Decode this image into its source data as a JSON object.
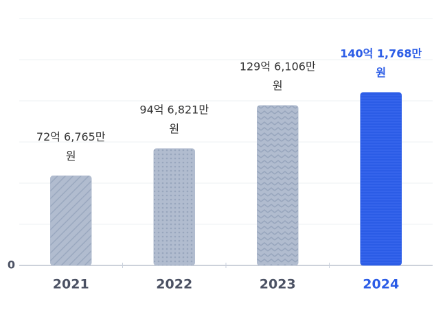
{
  "chart_data": {
    "type": "bar",
    "categories": [
      "2021",
      "2022",
      "2023",
      "2024"
    ],
    "values": [
      7267650000,
      9468210000,
      12961060000,
      14017680000
    ],
    "value_labels": [
      "72억 6,765만 원",
      "94억 6,821만 원",
      "129억 6,106만 원",
      "140억 1,768만 원"
    ],
    "colors": [
      "#b1bccf",
      "#b1bccf",
      "#b1bccf",
      "#2b5ce6"
    ],
    "label_colors": [
      "#333333",
      "#333333",
      "#333333",
      "#2b5ce6"
    ],
    "category_colors": [
      "#4b5163",
      "#4b5163",
      "#4b5163",
      "#2b5ce6"
    ],
    "ylim": [
      0,
      20000000000
    ],
    "yticks": [
      0,
      {
        "value": 3333333333,
        "label": null
      },
      {
        "value": 6666666667,
        "label": null
      },
      {
        "value": 10000000000,
        "label": null
      },
      {
        "value": 13333333333,
        "label": null
      },
      {
        "value": 16666666667,
        "label": null
      },
      {
        "value": 20000000000,
        "label": null
      }
    ],
    "grid": true
  }
}
